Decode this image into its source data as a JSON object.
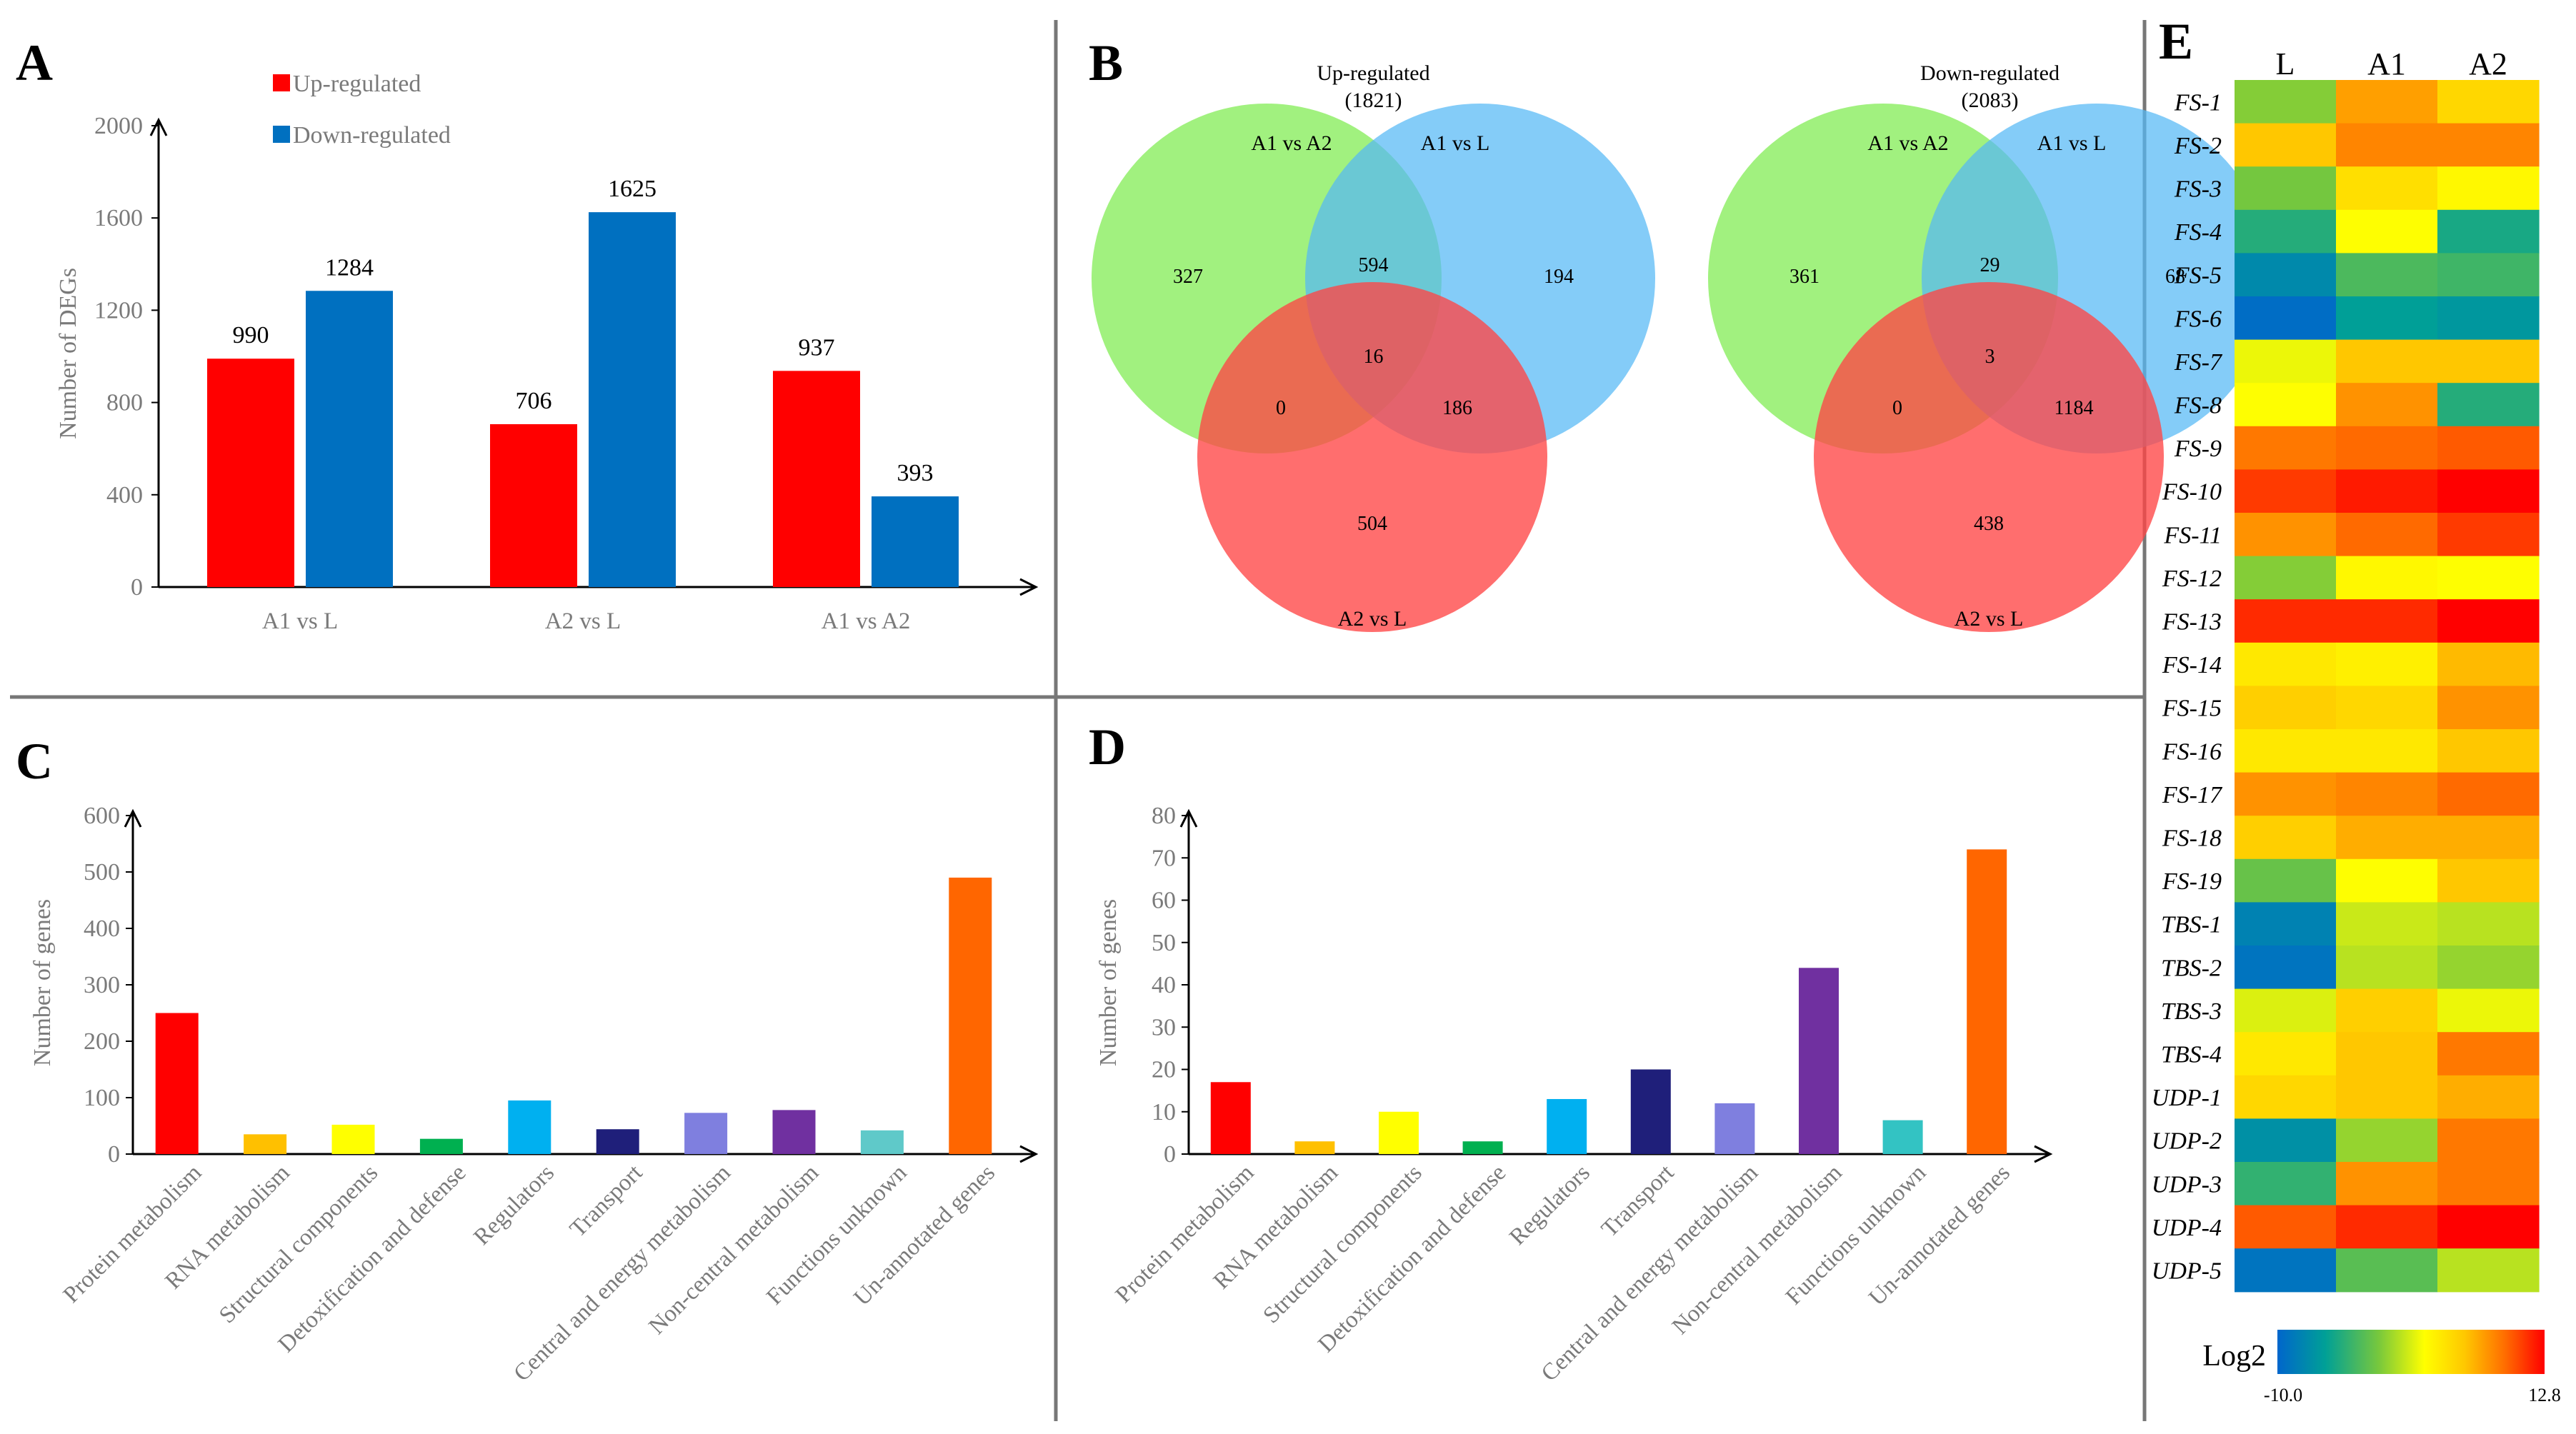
{
  "panels": {
    "A": "A",
    "B": "B",
    "C": "C",
    "D": "D",
    "E": "E"
  },
  "chart_data": [
    {
      "panel": "A",
      "type": "bar",
      "categories": [
        "A1 vs L",
        "A2 vs L",
        "A1 vs A2"
      ],
      "series": [
        {
          "name": "Up-regulated",
          "color": "#ff0000",
          "values": [
            990,
            706,
            937
          ]
        },
        {
          "name": "Down-regulated",
          "color": "#0070c0",
          "values": [
            1284,
            1625,
            393
          ]
        }
      ],
      "ylabel": "Number of DEGs",
      "ylim": [
        0,
        2000
      ],
      "yticks": [
        0,
        400,
        800,
        1200,
        1600,
        2000
      ],
      "legend": "top-left"
    },
    {
      "panel": "B",
      "type": "venn",
      "diagrams": [
        {
          "title": "Up-regulated",
          "total": "(1821)",
          "sets": [
            "A1  vs  A2",
            "A1  vs  L",
            "A2  vs  L"
          ],
          "regions": {
            "a_only": 327,
            "ab": 594,
            "b_only": 194,
            "abc": 16,
            "ac": 0,
            "bc": 186,
            "c_only": 504
          }
        },
        {
          "title": "Down-regulated",
          "total": "(2083)",
          "sets": [
            "A1  vs  A2",
            "A1  vs  L",
            "A2  vs  L"
          ],
          "regions": {
            "a_only": 361,
            "ab": 29,
            "b_only": 68,
            "abc": 3,
            "ac": 0,
            "bc": 1184,
            "c_only": 438
          }
        }
      ],
      "set_colors": [
        "#90ee68",
        "#55b8f5",
        "#ff4545"
      ]
    },
    {
      "panel": "C",
      "type": "bar",
      "categories": [
        "Protein metabolism",
        "RNA metabolism",
        "Structural components",
        "Detoxification and defense",
        "Regulators",
        "Transport",
        "Central and energy metabolism",
        "Non-central metabolism",
        "Functions unknown",
        "Un-annotated genes"
      ],
      "values": [
        250,
        35,
        52,
        27,
        95,
        44,
        73,
        78,
        42,
        490
      ],
      "colors": [
        "#ff0000",
        "#ffc000",
        "#ffff00",
        "#00b050",
        "#00b0f0",
        "#1f1f7a",
        "#7f7fdf",
        "#7030a0",
        "#5fc9c9",
        "#ff6600"
      ],
      "ylabel": "Number of genes",
      "ylim": [
        0,
        600
      ],
      "yticks": [
        0,
        100,
        200,
        300,
        400,
        500,
        600
      ]
    },
    {
      "panel": "D",
      "type": "bar",
      "categories": [
        "Protein metabolism",
        "RNA metabolism",
        "Structural components",
        "Detoxification and defense",
        "Regulators",
        "Transport",
        "Central and energy metabolism",
        "Non-central metabolism",
        "Functions unknown",
        "Un-annotated genes"
      ],
      "values": [
        17,
        3,
        10,
        3,
        13,
        20,
        12,
        44,
        8,
        72
      ],
      "colors": [
        "#ff0000",
        "#ffc000",
        "#ffff00",
        "#00b050",
        "#00b0f0",
        "#1f1f7a",
        "#7f7fdf",
        "#7030a0",
        "#33c3c3",
        "#ff6600"
      ],
      "ylabel": "Number of genes",
      "ylim": [
        0,
        80
      ],
      "yticks": [
        0,
        10,
        20,
        30,
        40,
        50,
        60,
        70,
        80
      ]
    },
    {
      "panel": "E",
      "type": "heatmap",
      "columns": [
        "L",
        "A1",
        "A2"
      ],
      "rows": [
        "FS-1",
        "FS-2",
        "FS-3",
        "FS-4",
        "FS-5",
        "FS-6",
        "FS-7",
        "FS-8",
        "FS-9",
        "FS-10",
        "FS-11",
        "FS-12",
        "FS-13",
        "FS-14",
        "FS-15",
        "FS-16",
        "FS-17",
        "FS-18",
        "FS-19",
        "TBS-1",
        "TBS-2",
        "TBS-3",
        "TBS-4",
        "UDP-1",
        "UDP-2",
        "UDP-3",
        "UDP-4",
        "UDP-5"
      ],
      "values": [
        [
          -1.0,
          7.5,
          5.0
        ],
        [
          6.0,
          8.5,
          8.5
        ],
        [
          -1.5,
          4.5,
          3.0
        ],
        [
          -4.5,
          2.5,
          -5.0
        ],
        [
          -7.5,
          -3.0,
          -3.5
        ],
        [
          -9.5,
          -6.0,
          -6.5
        ],
        [
          2.0,
          6.0,
          6.0
        ],
        [
          2.5,
          8.0,
          -4.5
        ],
        [
          9.0,
          9.5,
          10.0
        ],
        [
          11.0,
          12.0,
          12.8
        ],
        [
          8.0,
          9.5,
          11.0
        ],
        [
          -1.0,
          3.0,
          2.5
        ],
        [
          11.5,
          11.5,
          12.8
        ],
        [
          4.0,
          3.5,
          6.5
        ],
        [
          5.5,
          5.0,
          8.0
        ],
        [
          4.0,
          4.0,
          6.0
        ],
        [
          8.0,
          8.5,
          9.5
        ],
        [
          5.5,
          7.0,
          7.0
        ],
        [
          -2.0,
          2.5,
          6.0
        ],
        [
          -8.0,
          1.0,
          0.5
        ],
        [
          -9.0,
          0.5,
          -0.5
        ],
        [
          1.5,
          5.5,
          2.0
        ],
        [
          4.0,
          6.0,
          9.0
        ],
        [
          5.0,
          6.0,
          7.0
        ],
        [
          -7.0,
          -0.5,
          9.0
        ],
        [
          -4.0,
          8.0,
          9.0
        ],
        [
          10.0,
          11.5,
          12.8
        ],
        [
          -9.0,
          -2.5,
          0.5
        ]
      ],
      "colorbar": {
        "label": "Log2",
        "min": -10.0,
        "max": 12.8,
        "min_label": "-10.0",
        "max_label": "12.8"
      }
    }
  ]
}
